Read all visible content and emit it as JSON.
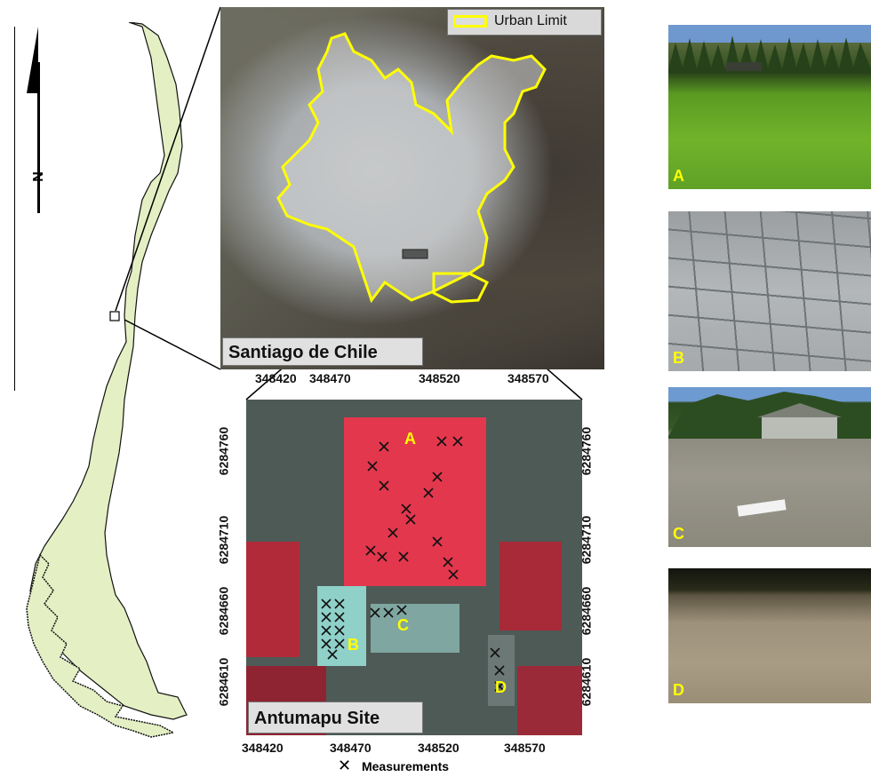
{
  "north": {
    "label": "N"
  },
  "santiago": {
    "title": "Santiago de Chile",
    "legend_label": "Urban Limit",
    "urban_limit_color": "#ffff00"
  },
  "antumapu": {
    "title": "Antumapu Site",
    "x_ticks": [
      "348420",
      "348470",
      "348520",
      "348570"
    ],
    "y_ticks": [
      "6284760",
      "6284710",
      "6284660",
      "6284610"
    ],
    "sites": [
      "A",
      "B",
      "C",
      "D"
    ],
    "legend_label": "Measurements",
    "legend_symbol": "✕",
    "site_label_color": "#ffff00"
  },
  "photos": [
    {
      "label": "A"
    },
    {
      "label": "B"
    },
    {
      "label": "C"
    },
    {
      "label": "D"
    }
  ]
}
